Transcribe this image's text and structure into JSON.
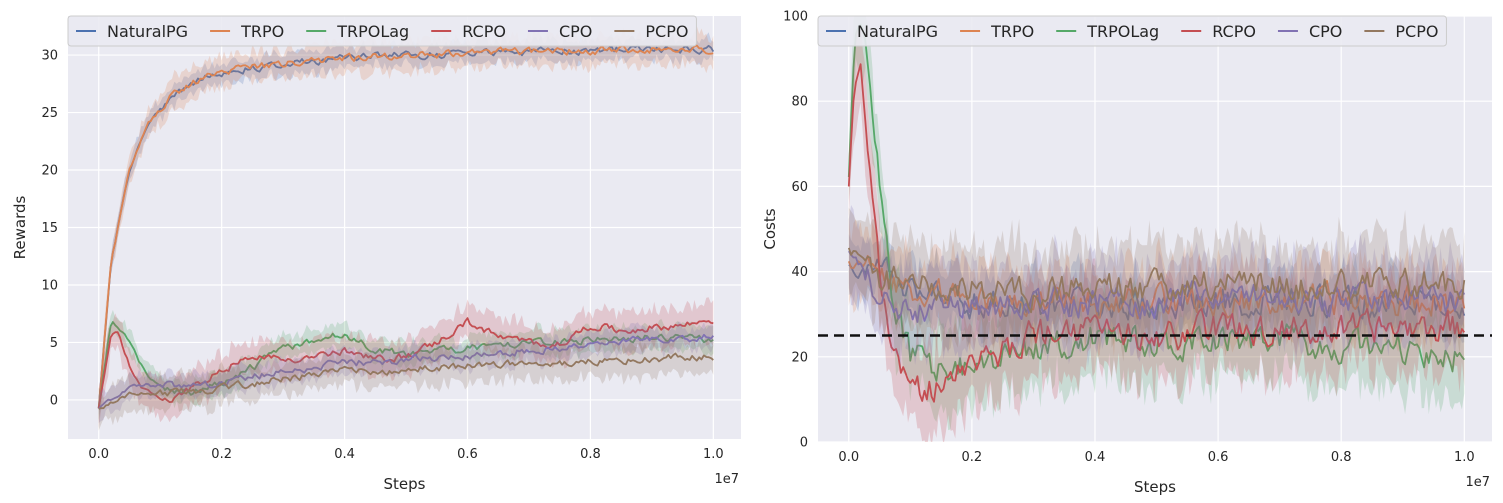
{
  "chart_data": [
    {
      "type": "line",
      "xlabel": "Steps",
      "ylabel": "Rewards",
      "x_offset_label": "1e7",
      "xlim": [
        -0.05,
        1.045
      ],
      "ylim": [
        -3.4,
        33.4
      ],
      "xticks": [
        0.0,
        0.2,
        0.4,
        0.6,
        0.8,
        1.0
      ],
      "xtick_labels": [
        "0.0",
        "0.2",
        "0.4",
        "0.6",
        "0.8",
        "1.0"
      ],
      "yticks": [
        0,
        5,
        10,
        15,
        20,
        25,
        30
      ],
      "ytick_labels": [
        "0",
        "5",
        "10",
        "15",
        "20",
        "25",
        "30"
      ],
      "grid": true,
      "legend_position": "top",
      "series": [
        {
          "name": "NaturalPG",
          "color": "#4c72b0",
          "band": 0.9,
          "x": [
            0,
            0.02,
            0.05,
            0.08,
            0.12,
            0.15,
            0.2,
            0.3,
            0.4,
            0.5,
            0.6,
            0.7,
            0.8,
            0.9,
            1.0
          ],
          "values": [
            -0.8,
            12,
            20,
            24,
            26.5,
            27.5,
            28.5,
            29.3,
            29.7,
            30.0,
            30.2,
            30.3,
            30.4,
            30.5,
            30.5
          ]
        },
        {
          "name": "TRPO",
          "color": "#dd8452",
          "band": 1.3,
          "x": [
            0,
            0.02,
            0.05,
            0.08,
            0.12,
            0.15,
            0.2,
            0.3,
            0.4,
            0.5,
            0.6,
            0.7,
            0.8,
            0.9,
            1.0
          ],
          "values": [
            -0.8,
            12,
            20,
            24,
            26.5,
            27.5,
            28.5,
            29.3,
            29.7,
            30.0,
            30.2,
            30.3,
            30.4,
            30.5,
            30.5
          ]
        },
        {
          "name": "TRPOLag",
          "color": "#55a868",
          "band": 1.0,
          "x": [
            0,
            0.02,
            0.04,
            0.06,
            0.08,
            0.1,
            0.15,
            0.2,
            0.25,
            0.3,
            0.35,
            0.4,
            0.45,
            0.5,
            0.55,
            0.6,
            0.7,
            0.8,
            0.9,
            1.0
          ],
          "values": [
            -0.8,
            6.8,
            6.0,
            4.0,
            2.0,
            1.0,
            0.6,
            1.5,
            2.8,
            4.5,
            5.0,
            5.8,
            4.3,
            4.0,
            4.2,
            4.5,
            5.0,
            5.2,
            5.5,
            5.2
          ]
        },
        {
          "name": "RCPO",
          "color": "#c44e52",
          "band": 1.5,
          "x": [
            0,
            0.02,
            0.03,
            0.05,
            0.07,
            0.1,
            0.12,
            0.15,
            0.2,
            0.25,
            0.3,
            0.35,
            0.4,
            0.45,
            0.5,
            0.55,
            0.6,
            0.65,
            0.7,
            0.75,
            0.8,
            0.85,
            0.9,
            0.95,
            1.0
          ],
          "values": [
            -0.8,
            5.8,
            6.0,
            3.0,
            1.0,
            0.2,
            0.0,
            1.0,
            2.5,
            4.0,
            3.5,
            3.8,
            4.2,
            3.5,
            3.8,
            5.0,
            6.8,
            5.5,
            5.0,
            4.8,
            6.5,
            6.0,
            6.3,
            6.5,
            7.0
          ]
        },
        {
          "name": "CPO",
          "color": "#8172b3",
          "band": 1.0,
          "x": [
            0,
            0.05,
            0.1,
            0.15,
            0.2,
            0.3,
            0.4,
            0.5,
            0.6,
            0.7,
            0.8,
            0.9,
            1.0
          ],
          "values": [
            -0.8,
            1.2,
            1.3,
            1.3,
            1.5,
            2.5,
            3.2,
            3.5,
            3.9,
            4.3,
            4.8,
            5.3,
            5.5
          ]
        },
        {
          "name": "PCPO",
          "color": "#937860",
          "band": 1.4,
          "x": [
            0,
            0.05,
            0.1,
            0.15,
            0.2,
            0.3,
            0.4,
            0.5,
            0.6,
            0.7,
            0.8,
            0.9,
            1.0
          ],
          "values": [
            -0.8,
            0.5,
            0.6,
            0.8,
            1.0,
            1.8,
            2.5,
            2.6,
            3.0,
            3.2,
            3.3,
            3.6,
            3.8
          ]
        }
      ]
    },
    {
      "type": "line",
      "xlabel": "Steps",
      "ylabel": "Costs",
      "x_offset_label": "1e7",
      "xlim": [
        -0.05,
        1.045
      ],
      "ylim": [
        0,
        100
      ],
      "xticks": [
        0.0,
        0.2,
        0.4,
        0.6,
        0.8,
        1.0
      ],
      "xtick_labels": [
        "0.0",
        "0.2",
        "0.4",
        "0.6",
        "0.8",
        "1.0"
      ],
      "yticks": [
        0,
        20,
        40,
        60,
        80,
        100
      ],
      "ytick_labels": [
        "0",
        "20",
        "40",
        "60",
        "80",
        "100"
      ],
      "grid": true,
      "legend_position": "top",
      "threshold": 25,
      "series": [
        {
          "name": "NaturalPG",
          "color": "#4c72b0",
          "band": 6,
          "x": [
            0,
            0.05,
            0.1,
            0.2,
            0.4,
            0.6,
            0.8,
            1.0
          ],
          "values": [
            41,
            40,
            36,
            33,
            32,
            33,
            33,
            33
          ]
        },
        {
          "name": "TRPO",
          "color": "#dd8452",
          "band": 8,
          "x": [
            0,
            0.05,
            0.1,
            0.2,
            0.4,
            0.6,
            0.8,
            1.0
          ],
          "values": [
            42,
            40,
            36,
            33,
            32,
            33,
            33,
            33
          ]
        },
        {
          "name": "TRPOLag",
          "color": "#55a868",
          "band": 9,
          "x": [
            0,
            0.01,
            0.02,
            0.03,
            0.05,
            0.07,
            0.1,
            0.15,
            0.2,
            0.3,
            0.4,
            0.5,
            0.6,
            0.7,
            0.8,
            0.9,
            1.0
          ],
          "values": [
            62,
            95,
            100,
            90,
            60,
            35,
            20,
            17,
            18,
            22,
            25,
            23,
            24,
            24,
            23,
            22,
            20
          ]
        },
        {
          "name": "RCPO",
          "color": "#c44e52",
          "band": 10,
          "x": [
            0,
            0.01,
            0.02,
            0.03,
            0.05,
            0.07,
            0.1,
            0.15,
            0.2,
            0.3,
            0.4,
            0.5,
            0.6,
            0.7,
            0.8,
            0.9,
            1.0
          ],
          "values": [
            60,
            85,
            88,
            70,
            40,
            25,
            12,
            13,
            18,
            25,
            26,
            24,
            27,
            26,
            26,
            27,
            27
          ]
        },
        {
          "name": "CPO",
          "color": "#8172b3",
          "band": 9,
          "x": [
            0,
            0.05,
            0.1,
            0.2,
            0.3,
            0.4,
            0.5,
            0.6,
            0.7,
            0.8,
            0.9,
            1.0
          ],
          "values": [
            45,
            34,
            31,
            31,
            32,
            33,
            33,
            34,
            34,
            33,
            33,
            33
          ]
        },
        {
          "name": "PCPO",
          "color": "#937860",
          "band": 10,
          "x": [
            0,
            0.05,
            0.1,
            0.2,
            0.3,
            0.4,
            0.5,
            0.6,
            0.7,
            0.8,
            0.9,
            1.0
          ],
          "values": [
            46,
            38,
            37,
            36,
            35,
            36,
            36,
            37,
            37,
            36,
            37,
            37
          ]
        }
      ]
    }
  ]
}
